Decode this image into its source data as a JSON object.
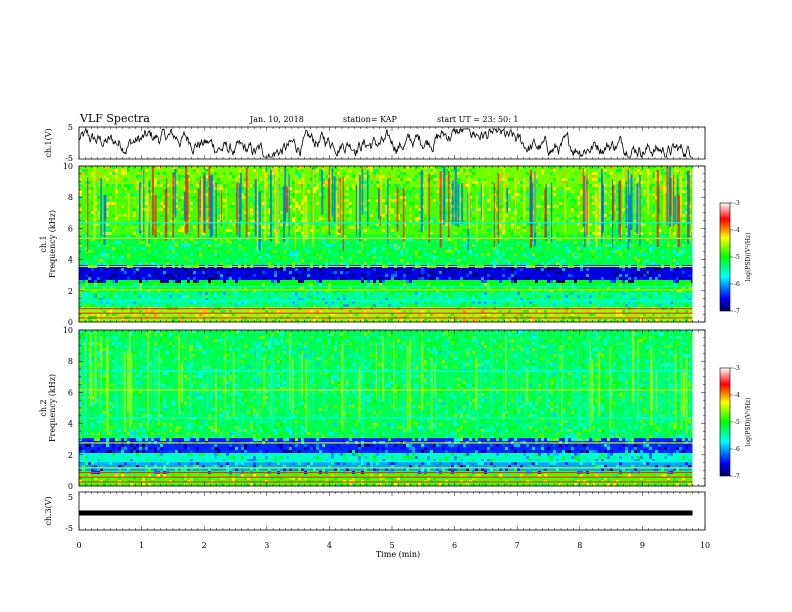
{
  "header": {
    "title": "VLF Spectra",
    "date": "Jan. 10, 2018",
    "station": "station= KAP",
    "start": "start UT =  23: 50: 1"
  },
  "chart_data": [
    {
      "type": "line",
      "panel": "ch1-waveform",
      "ylabel": "ch.1(V)",
      "ylim": [
        -5,
        5
      ],
      "yticks": [
        "5",
        "-5"
      ],
      "xlim": [
        0,
        10
      ],
      "description_values": "noisy waveform approx between -2 and 2 V over 0-9.8 min"
    },
    {
      "type": "heatmap",
      "panel": "ch1-spectrogram",
      "ylabel": "ch.1 Frequency (kHz)",
      "ylabel_line1": "ch.1",
      "ylabel_line2": "Frequency  (kHz)",
      "ylim": [
        0,
        10
      ],
      "yticks": [
        "0",
        "2",
        "4",
        "6",
        "8",
        "10"
      ],
      "xlim": [
        0,
        10
      ],
      "colorbar": {
        "label": "log(PSD)(V²/Hz)",
        "range": [
          -7,
          -3
        ],
        "ticks": [
          "-3",
          "-4",
          "-5",
          "-6",
          "-7"
        ]
      }
    },
    {
      "type": "heatmap",
      "panel": "ch2-spectrogram",
      "ylabel": "ch.2 Frequency (kHz)",
      "ylabel_line1": "ch.2",
      "ylabel_line2": "Frequency  (kHz)",
      "ylim": [
        0,
        10
      ],
      "yticks": [
        "0",
        "2",
        "4",
        "6",
        "8",
        "10"
      ],
      "xlim": [
        0,
        10
      ],
      "colorbar": {
        "label": "log(PSD)(V²/Hz)",
        "range": [
          -7,
          -3
        ],
        "ticks": [
          "-3",
          "-4",
          "-5",
          "-6",
          "-7"
        ]
      }
    },
    {
      "type": "line",
      "panel": "ch3-waveform",
      "ylabel": "ch.3(V)",
      "ylim": [
        -5,
        5
      ],
      "yticks": [
        "5",
        "-5"
      ],
      "xlim": [
        0,
        10
      ],
      "constant_value": 0
    }
  ],
  "xaxis": {
    "label": "Time  (min)",
    "ticks": [
      "0",
      "1",
      "2",
      "3",
      "4",
      "5",
      "6",
      "7",
      "8",
      "9",
      "10"
    ]
  }
}
